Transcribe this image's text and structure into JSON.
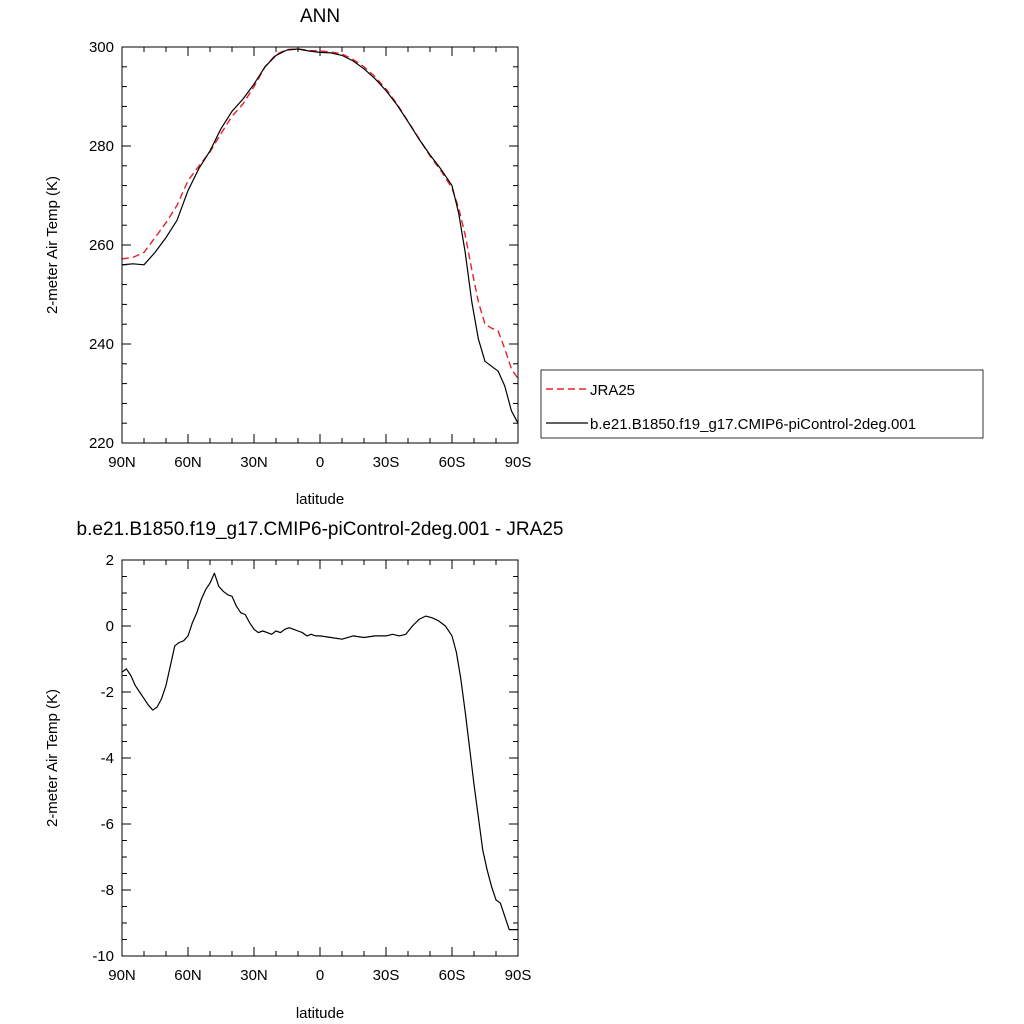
{
  "chart_data": [
    {
      "type": "line",
      "title": "ANN",
      "xlabel": "latitude",
      "ylabel": "2-meter Air Temp (K)",
      "xlim": [
        90,
        -90
      ],
      "ylim": [
        220,
        300
      ],
      "xticks": [
        {
          "value": 90,
          "label": "90N"
        },
        {
          "value": 60,
          "label": "60N"
        },
        {
          "value": 30,
          "label": "30N"
        },
        {
          "value": 0,
          "label": "0"
        },
        {
          "value": -30,
          "label": "30S"
        },
        {
          "value": -60,
          "label": "60S"
        },
        {
          "value": -90,
          "label": "90S"
        }
      ],
      "yticks": [
        300,
        280,
        260,
        240,
        220
      ],
      "legend_position": "right",
      "series": [
        {
          "name": "JRA25",
          "color": "#e8202a",
          "dash": "dashed",
          "x": [
            90,
            85,
            80,
            75,
            70,
            65,
            60,
            55,
            50,
            45,
            40,
            35,
            30,
            25,
            20,
            15,
            10,
            5,
            0,
            -5,
            -10,
            -15,
            -20,
            -25,
            -30,
            -35,
            -40,
            -45,
            -50,
            -55,
            -60,
            -63,
            -66,
            -69,
            -72,
            -75,
            -78,
            -81,
            -84,
            -87,
            -90
          ],
          "values": [
            257.2,
            257.5,
            258.5,
            261.5,
            264.5,
            268.0,
            273.0,
            276.0,
            278.8,
            282.5,
            286.0,
            288.5,
            292.0,
            296.0,
            298.5,
            299.5,
            299.6,
            299.3,
            299.2,
            299.0,
            298.6,
            297.5,
            296.0,
            294.0,
            291.5,
            288.5,
            285.0,
            281.5,
            278.0,
            275.0,
            271.5,
            267.5,
            262.0,
            255.0,
            248.5,
            244.0,
            243.2,
            242.6,
            239.0,
            235.0,
            233.0
          ]
        },
        {
          "name": "b.e21.B1850.f19_g17.CMIP6-piControl-2deg.001",
          "color": "#000000",
          "dash": "solid",
          "x": [
            90,
            85,
            80,
            75,
            70,
            65,
            60,
            55,
            50,
            45,
            40,
            35,
            30,
            25,
            20,
            15,
            10,
            5,
            0,
            -5,
            -10,
            -15,
            -20,
            -25,
            -30,
            -35,
            -40,
            -45,
            -50,
            -55,
            -60,
            -63,
            -66,
            -69,
            -72,
            -75,
            -78,
            -81,
            -84,
            -87,
            -90
          ],
          "values": [
            256.0,
            256.2,
            256.0,
            258.5,
            261.5,
            265.0,
            271.0,
            275.5,
            279.0,
            283.5,
            287.0,
            289.5,
            292.5,
            296.0,
            298.3,
            299.4,
            299.6,
            299.2,
            298.9,
            298.8,
            298.3,
            297.2,
            295.6,
            293.6,
            291.2,
            288.3,
            284.9,
            281.4,
            278.2,
            275.3,
            272.0,
            266.5,
            258.5,
            248.5,
            241.0,
            236.5,
            235.5,
            234.5,
            231.5,
            226.5,
            224.0
          ]
        }
      ]
    },
    {
      "type": "line",
      "title": "b.e21.B1850.f19_g17.CMIP6-piControl-2deg.001 - JRA25",
      "xlabel": "latitude",
      "ylabel": "2-meter Air Temp (K)",
      "xlim": [
        90,
        -90
      ],
      "ylim": [
        -10,
        2
      ],
      "xticks": [
        {
          "value": 90,
          "label": "90N"
        },
        {
          "value": 60,
          "label": "60N"
        },
        {
          "value": 30,
          "label": "30N"
        },
        {
          "value": 0,
          "label": "0"
        },
        {
          "value": -30,
          "label": "30S"
        },
        {
          "value": -60,
          "label": "60S"
        },
        {
          "value": -90,
          "label": "90S"
        }
      ],
      "yticks": [
        2,
        0,
        -2,
        -4,
        -6,
        -8,
        -10
      ],
      "series": [
        {
          "color": "#000000",
          "dash": "solid",
          "x": [
            90,
            88,
            86,
            84,
            82,
            80,
            78,
            76,
            74,
            72,
            70,
            68,
            66,
            64,
            62,
            60,
            58,
            56,
            54,
            52,
            50,
            48,
            46,
            44,
            42,
            40,
            38,
            36,
            34,
            32,
            30,
            28,
            26,
            24,
            22,
            20,
            18,
            16,
            14,
            12,
            10,
            8,
            6,
            4,
            2,
            0,
            -5,
            -10,
            -15,
            -20,
            -25,
            -30,
            -33,
            -36,
            -39,
            -42,
            -45,
            -48,
            -51,
            -54,
            -57,
            -60,
            -62,
            -64,
            -66,
            -68,
            -70,
            -72,
            -74,
            -76,
            -78,
            -80,
            -82,
            -84,
            -86,
            -88,
            -90
          ],
          "values": [
            -1.4,
            -1.3,
            -1.5,
            -1.8,
            -2.0,
            -2.2,
            -2.4,
            -2.55,
            -2.45,
            -2.2,
            -1.8,
            -1.2,
            -0.6,
            -0.5,
            -0.45,
            -0.3,
            0.1,
            0.4,
            0.8,
            1.1,
            1.3,
            1.6,
            1.2,
            1.05,
            0.95,
            0.9,
            0.6,
            0.4,
            0.35,
            0.1,
            -0.1,
            -0.2,
            -0.15,
            -0.2,
            -0.25,
            -0.15,
            -0.2,
            -0.1,
            -0.05,
            -0.1,
            -0.15,
            -0.2,
            -0.3,
            -0.25,
            -0.3,
            -0.3,
            -0.35,
            -0.4,
            -0.3,
            -0.35,
            -0.3,
            -0.3,
            -0.25,
            -0.3,
            -0.25,
            0.0,
            0.2,
            0.3,
            0.25,
            0.15,
            0.0,
            -0.3,
            -0.8,
            -1.6,
            -2.6,
            -3.7,
            -4.8,
            -5.8,
            -6.8,
            -7.4,
            -7.9,
            -8.3,
            -8.4,
            -8.8,
            -9.2,
            -9.2,
            -9.2
          ]
        }
      ]
    }
  ]
}
